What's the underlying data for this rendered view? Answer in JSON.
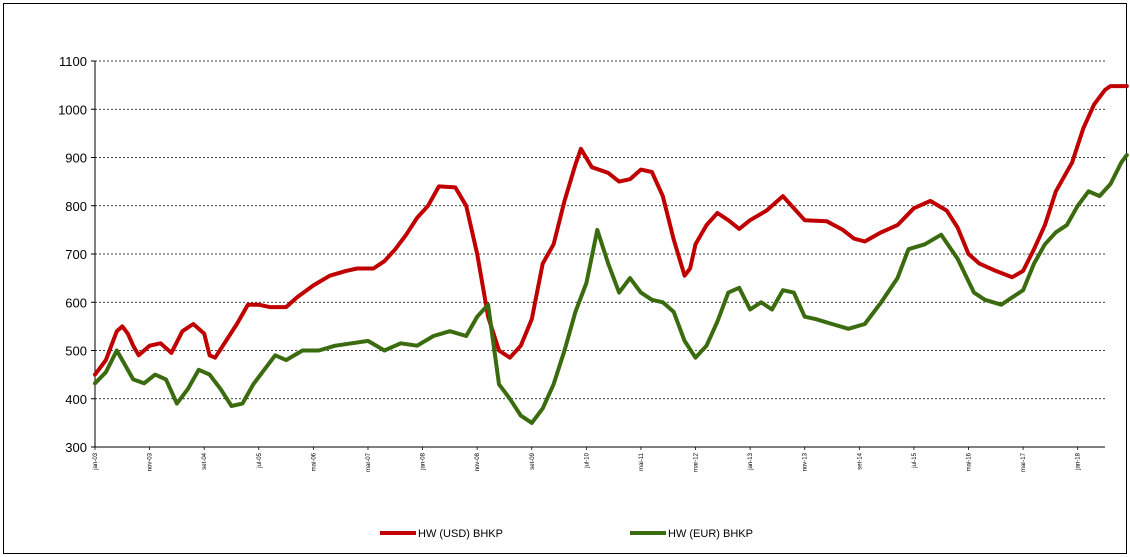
{
  "chart_data": {
    "type": "line",
    "title": "",
    "xlabel": "",
    "ylabel": "",
    "ylim": [
      300,
      1100
    ],
    "yticks": [
      300,
      400,
      500,
      600,
      700,
      800,
      900,
      1000,
      1100
    ],
    "grid": "horizontal dashed",
    "legend_position": "bottom",
    "x_tick_labels": [
      "jan-03",
      "nov-03",
      "set-04",
      "jul-05",
      "mai-06",
      "mar-07",
      "jan-08",
      "nov-08",
      "set-09",
      "jul-10",
      "mai-11",
      "mar-12",
      "jan-13",
      "nov-13",
      "set-14",
      "jul-15",
      "mai-16",
      "mar-17",
      "jan-18"
    ],
    "x_start": "2003-01",
    "x_end": "2018-06",
    "series": [
      {
        "name": "HW (USD) BHKP",
        "color": "#c00000",
        "points": [
          [
            "2003-01",
            450
          ],
          [
            "2003-03",
            480
          ],
          [
            "2003-05",
            540
          ],
          [
            "2003-06",
            550
          ],
          [
            "2003-07",
            535
          ],
          [
            "2003-08",
            510
          ],
          [
            "2003-09",
            490
          ],
          [
            "2003-10",
            500
          ],
          [
            "2003-11",
            510
          ],
          [
            "2004-01",
            515
          ],
          [
            "2004-03",
            495
          ],
          [
            "2004-05",
            540
          ],
          [
            "2004-07",
            555
          ],
          [
            "2004-09",
            535
          ],
          [
            "2004-10",
            490
          ],
          [
            "2004-11",
            485
          ],
          [
            "2005-01",
            520
          ],
          [
            "2005-03",
            555
          ],
          [
            "2005-05",
            595
          ],
          [
            "2005-07",
            595
          ],
          [
            "2005-09",
            590
          ],
          [
            "2005-12",
            590
          ],
          [
            "2006-02",
            610
          ],
          [
            "2006-05",
            635
          ],
          [
            "2006-08",
            655
          ],
          [
            "2006-11",
            665
          ],
          [
            "2007-01",
            670
          ],
          [
            "2007-04",
            670
          ],
          [
            "2007-06",
            685
          ],
          [
            "2007-08",
            710
          ],
          [
            "2007-10",
            740
          ],
          [
            "2007-12",
            775
          ],
          [
            "2008-02",
            800
          ],
          [
            "2008-04",
            840
          ],
          [
            "2008-07",
            838
          ],
          [
            "2008-09",
            800
          ],
          [
            "2008-11",
            700
          ],
          [
            "2009-01",
            570
          ],
          [
            "2009-03",
            500
          ],
          [
            "2009-05",
            485
          ],
          [
            "2009-07",
            510
          ],
          [
            "2009-09",
            565
          ],
          [
            "2009-11",
            680
          ],
          [
            "2010-01",
            720
          ],
          [
            "2010-03",
            810
          ],
          [
            "2010-05",
            885
          ],
          [
            "2010-06",
            918
          ],
          [
            "2010-08",
            880
          ],
          [
            "2010-11",
            868
          ],
          [
            "2011-01",
            850
          ],
          [
            "2011-03",
            855
          ],
          [
            "2011-05",
            875
          ],
          [
            "2011-07",
            870
          ],
          [
            "2011-09",
            820
          ],
          [
            "2011-11",
            730
          ],
          [
            "2012-01",
            655
          ],
          [
            "2012-02",
            670
          ],
          [
            "2012-03",
            720
          ],
          [
            "2012-05",
            760
          ],
          [
            "2012-07",
            785
          ],
          [
            "2012-09",
            770
          ],
          [
            "2012-11",
            752
          ],
          [
            "2013-01",
            770
          ],
          [
            "2013-04",
            790
          ],
          [
            "2013-07",
            820
          ],
          [
            "2013-09",
            795
          ],
          [
            "2013-11",
            770
          ],
          [
            "2014-03",
            768
          ],
          [
            "2014-06",
            750
          ],
          [
            "2014-08",
            732
          ],
          [
            "2014-10",
            726
          ],
          [
            "2015-01",
            745
          ],
          [
            "2015-04",
            760
          ],
          [
            "2015-07",
            795
          ],
          [
            "2015-10",
            810
          ],
          [
            "2016-01",
            790
          ],
          [
            "2016-03",
            755
          ],
          [
            "2016-05",
            700
          ],
          [
            "2016-07",
            680
          ],
          [
            "2016-10",
            665
          ],
          [
            "2017-01",
            652
          ],
          [
            "2017-03",
            665
          ],
          [
            "2017-05",
            710
          ],
          [
            "2017-07",
            760
          ],
          [
            "2017-09",
            830
          ],
          [
            "2017-12",
            890
          ],
          [
            "2018-02",
            960
          ],
          [
            "2018-04",
            1010
          ],
          [
            "2018-06",
            1040
          ],
          [
            "2018-07",
            1048
          ],
          [
            "2018-10",
            1048
          ]
        ]
      },
      {
        "name": "HW (EUR) BHKP",
        "color": "#3a6b0f",
        "points": [
          [
            "2003-01",
            432
          ],
          [
            "2003-03",
            455
          ],
          [
            "2003-05",
            500
          ],
          [
            "2003-06",
            480
          ],
          [
            "2003-08",
            440
          ],
          [
            "2003-10",
            432
          ],
          [
            "2003-12",
            450
          ],
          [
            "2004-02",
            440
          ],
          [
            "2004-04",
            390
          ],
          [
            "2004-06",
            420
          ],
          [
            "2004-08",
            460
          ],
          [
            "2004-10",
            450
          ],
          [
            "2004-12",
            420
          ],
          [
            "2005-02",
            385
          ],
          [
            "2005-04",
            390
          ],
          [
            "2005-06",
            430
          ],
          [
            "2005-08",
            460
          ],
          [
            "2005-10",
            490
          ],
          [
            "2005-12",
            480
          ],
          [
            "2006-03",
            500
          ],
          [
            "2006-06",
            500
          ],
          [
            "2006-09",
            510
          ],
          [
            "2006-12",
            515
          ],
          [
            "2007-03",
            520
          ],
          [
            "2007-06",
            500
          ],
          [
            "2007-09",
            515
          ],
          [
            "2007-12",
            510
          ],
          [
            "2008-03",
            530
          ],
          [
            "2008-06",
            540
          ],
          [
            "2008-09",
            530
          ],
          [
            "2008-11",
            570
          ],
          [
            "2009-01",
            595
          ],
          [
            "2009-03",
            430
          ],
          [
            "2009-05",
            400
          ],
          [
            "2009-07",
            365
          ],
          [
            "2009-09",
            350
          ],
          [
            "2009-11",
            380
          ],
          [
            "2010-01",
            430
          ],
          [
            "2010-03",
            500
          ],
          [
            "2010-05",
            580
          ],
          [
            "2010-07",
            640
          ],
          [
            "2010-09",
            750
          ],
          [
            "2010-11",
            680
          ],
          [
            "2011-01",
            620
          ],
          [
            "2011-03",
            650
          ],
          [
            "2011-05",
            620
          ],
          [
            "2011-07",
            605
          ],
          [
            "2011-09",
            600
          ],
          [
            "2011-11",
            580
          ],
          [
            "2012-01",
            520
          ],
          [
            "2012-03",
            485
          ],
          [
            "2012-05",
            510
          ],
          [
            "2012-07",
            560
          ],
          [
            "2012-09",
            620
          ],
          [
            "2012-11",
            630
          ],
          [
            "2013-01",
            585
          ],
          [
            "2013-03",
            600
          ],
          [
            "2013-05",
            585
          ],
          [
            "2013-07",
            625
          ],
          [
            "2013-09",
            620
          ],
          [
            "2013-11",
            570
          ],
          [
            "2014-01",
            565
          ],
          [
            "2014-04",
            555
          ],
          [
            "2014-07",
            545
          ],
          [
            "2014-10",
            555
          ],
          [
            "2015-01",
            600
          ],
          [
            "2015-04",
            650
          ],
          [
            "2015-06",
            710
          ],
          [
            "2015-09",
            720
          ],
          [
            "2015-12",
            740
          ],
          [
            "2016-03",
            690
          ],
          [
            "2016-06",
            620
          ],
          [
            "2016-08",
            605
          ],
          [
            "2016-11",
            595
          ],
          [
            "2017-01",
            610
          ],
          [
            "2017-03",
            625
          ],
          [
            "2017-05",
            680
          ],
          [
            "2017-07",
            720
          ],
          [
            "2017-09",
            745
          ],
          [
            "2017-11",
            760
          ],
          [
            "2018-01",
            800
          ],
          [
            "2018-03",
            830
          ],
          [
            "2018-05",
            820
          ],
          [
            "2018-07",
            845
          ],
          [
            "2018-09",
            890
          ],
          [
            "2018-10",
            905
          ]
        ]
      }
    ]
  }
}
